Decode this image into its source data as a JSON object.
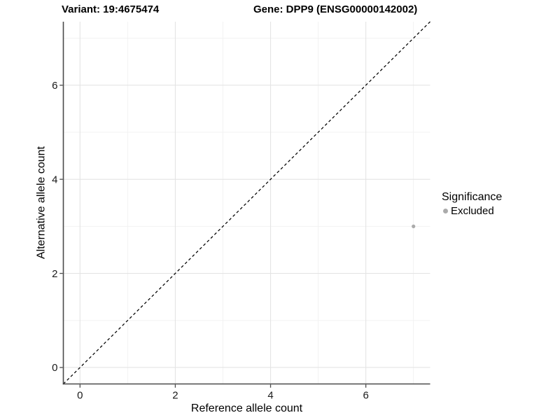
{
  "titles": {
    "variant": "Variant: 19:4675474",
    "gene": "Gene: DPP9 (ENSG00000142002)"
  },
  "legend": {
    "title": "Significance",
    "items": [
      {
        "label": "Excluded",
        "color": "#ababab"
      }
    ]
  },
  "chart_data": {
    "type": "scatter",
    "title": "",
    "xlabel": "Reference allele count",
    "ylabel": "Alternative allele count",
    "xlim": [
      -0.35,
      7.35
    ],
    "ylim": [
      -0.35,
      7.35
    ],
    "x_ticks": [
      0,
      2,
      4,
      6
    ],
    "y_ticks": [
      0,
      2,
      4,
      6
    ],
    "x_minor_ticks": [
      1,
      3,
      5,
      7
    ],
    "y_minor_ticks": [
      1,
      3,
      5,
      7
    ],
    "grid": true,
    "legend_position": "right",
    "reference_line": {
      "type": "identity y=x",
      "style": "dashed",
      "color": "#000000"
    },
    "series": [
      {
        "name": "Excluded",
        "color": "#ababab",
        "points": [
          {
            "x": 7,
            "y": 3
          }
        ]
      }
    ]
  },
  "colors": {
    "background": "#ffffff",
    "grid_major": "#e4e4e4",
    "grid_minor": "#f1f1f1",
    "axis_line": "#4a4a4a",
    "tick_mark": "#4a4a4a",
    "tick_label": "#1a1a1a",
    "title_text": "#000000",
    "point": "#ababab",
    "reference_line": "#000000"
  }
}
